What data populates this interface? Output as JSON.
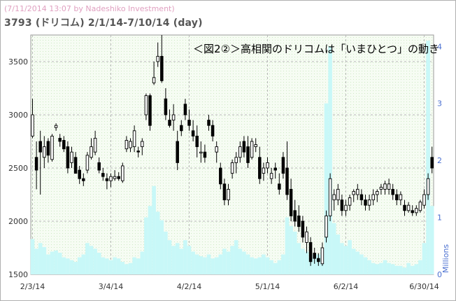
{
  "header": {
    "credit": "(7/11/2014 13:07 by Nadeshiko Investment)",
    "symbol_line": "3793 (ドリコム) 2/1/14-7/10/14 (day)"
  },
  "chart_data": {
    "type": "candlestick",
    "annotation": "＜図2②＞高相関のドリコムは「いまひとつ」の動き",
    "price_axis": {
      "ylim": [
        1500,
        3750
      ],
      "ticks": [
        1500,
        2000,
        2500,
        3000,
        3500
      ],
      "side": "left"
    },
    "volume_axis": {
      "ylim": [
        0,
        4.2
      ],
      "ticks": [
        0,
        1,
        2,
        3,
        4
      ],
      "label": "Millions",
      "side": "right"
    },
    "x_ticks": [
      "2/3/14",
      "3/4/14",
      "4/2/14",
      "5/1/14",
      "6/2/14",
      "6/30/14"
    ],
    "x_tick_index": [
      0,
      20,
      40,
      60,
      80,
      100
    ],
    "grid": true,
    "colors": {
      "up": "#ffffff",
      "down": "#000000",
      "volume": "#c8f8f8",
      "plot_bg": "#f4fbf1",
      "grid": "#b8b8b8"
    },
    "series": [
      {
        "name": "price",
        "ohlc": [
          [
            2800,
            3150,
            2780,
            3000
          ],
          [
            2600,
            2750,
            2300,
            2480
          ],
          [
            2750,
            2850,
            2250,
            2650
          ],
          [
            2600,
            2800,
            2500,
            2700
          ],
          [
            2750,
            2780,
            2550,
            2620
          ],
          [
            2580,
            2820,
            2560,
            2800
          ],
          [
            2880,
            2920,
            2850,
            2900
          ],
          [
            2780,
            2820,
            2700,
            2750
          ],
          [
            2760,
            2800,
            2650,
            2680
          ],
          [
            2700,
            2750,
            2450,
            2500
          ],
          [
            2550,
            2700,
            2500,
            2650
          ],
          [
            2600,
            2650,
            2450,
            2450
          ],
          [
            2480,
            2520,
            2350,
            2400
          ],
          [
            2400,
            2450,
            2330,
            2380
          ],
          [
            2480,
            2650,
            2450,
            2620
          ],
          [
            2600,
            2780,
            2580,
            2700
          ],
          [
            2650,
            2850,
            2620,
            2780
          ],
          [
            2550,
            2600,
            2450,
            2480
          ],
          [
            2450,
            2500,
            2380,
            2420
          ],
          [
            2400,
            2450,
            2300,
            2380
          ],
          [
            2380,
            2450,
            2320,
            2420
          ],
          [
            2400,
            2480,
            2380,
            2420
          ],
          [
            2420,
            2460,
            2380,
            2400
          ],
          [
            2380,
            2550,
            2360,
            2520
          ],
          [
            2680,
            2800,
            2650,
            2760
          ],
          [
            2690,
            2780,
            2650,
            2750
          ],
          [
            2700,
            2900,
            2650,
            2850
          ],
          [
            2660,
            2700,
            2600,
            2650
          ],
          [
            2700,
            2780,
            2620,
            2750
          ],
          [
            3000,
            3200,
            2950,
            3180
          ],
          [
            3180,
            3200,
            2850,
            2900
          ],
          [
            3300,
            3500,
            3280,
            3350
          ],
          [
            3500,
            3680,
            3450,
            3550
          ],
          [
            3550,
            3750,
            3300,
            3320
          ],
          [
            3150,
            3250,
            2950,
            3000
          ],
          [
            2950,
            3050,
            2880,
            2900
          ],
          [
            2950,
            3100,
            2850,
            3000
          ],
          [
            2750,
            2850,
            2480,
            2550
          ],
          [
            2900,
            2950,
            2800,
            2850
          ],
          [
            3100,
            3150,
            2950,
            3000
          ],
          [
            2950,
            3050,
            2850,
            2900
          ],
          [
            2850,
            2950,
            2750,
            2800
          ],
          [
            2800,
            2900,
            2600,
            2700
          ],
          [
            2650,
            2750,
            2550,
            2650
          ],
          [
            2650,
            2720,
            2550,
            2600
          ],
          [
            2950,
            3000,
            2850,
            2900
          ],
          [
            2900,
            2950,
            2750,
            2800
          ],
          [
            2650,
            2750,
            2550,
            2700
          ],
          [
            2500,
            2550,
            2300,
            2350
          ],
          [
            2350,
            2400,
            2150,
            2200
          ],
          [
            2200,
            2350,
            2150,
            2300
          ],
          [
            2450,
            2580,
            2400,
            2550
          ],
          [
            2550,
            2650,
            2450,
            2600
          ],
          [
            2600,
            2750,
            2550,
            2700
          ],
          [
            2750,
            2800,
            2600,
            2650
          ],
          [
            2700,
            2800,
            2500,
            2550
          ],
          [
            2600,
            2780,
            2580,
            2750
          ],
          [
            2700,
            2780,
            2650,
            2720
          ],
          [
            2600,
            2700,
            2350,
            2400
          ],
          [
            2450,
            2550,
            2380,
            2500
          ],
          [
            2500,
            2600,
            2450,
            2550
          ],
          [
            2400,
            2500,
            2350,
            2450
          ],
          [
            2500,
            2550,
            2400,
            2480
          ],
          [
            2350,
            2450,
            2250,
            2300
          ],
          [
            2600,
            2650,
            2400,
            2450
          ],
          [
            2500,
            2750,
            2200,
            2250
          ],
          [
            2300,
            2400,
            2000,
            2050
          ],
          [
            2100,
            2200,
            1950,
            2000
          ],
          [
            2050,
            2150,
            1900,
            1950
          ],
          [
            2000,
            2050,
            1800,
            1850
          ],
          [
            1800,
            1950,
            1700,
            1900
          ],
          [
            1800,
            1850,
            1580,
            1620
          ],
          [
            1700,
            1750,
            1600,
            1650
          ],
          [
            1650,
            1700,
            1580,
            1620
          ],
          [
            1600,
            1800,
            1580,
            1750
          ],
          [
            1850,
            2100,
            1800,
            2050
          ],
          [
            2050,
            2450,
            2000,
            2400
          ],
          [
            2200,
            2300,
            2100,
            2250
          ],
          [
            2200,
            2350,
            2150,
            2300
          ],
          [
            2200,
            2250,
            2050,
            2100
          ],
          [
            2100,
            2200,
            2050,
            2150
          ],
          [
            2150,
            2250,
            2100,
            2220
          ],
          [
            2250,
            2300,
            2180,
            2280
          ],
          [
            2250,
            2350,
            2200,
            2300
          ],
          [
            2250,
            2300,
            2150,
            2200
          ],
          [
            2200,
            2250,
            2100,
            2150
          ],
          [
            2150,
            2250,
            2100,
            2200
          ],
          [
            2200,
            2300,
            2150,
            2250
          ],
          [
            2250,
            2300,
            2180,
            2280
          ],
          [
            2300,
            2350,
            2250,
            2320
          ],
          [
            2300,
            2380,
            2250,
            2350
          ],
          [
            2300,
            2400,
            2250,
            2350
          ],
          [
            2300,
            2350,
            2200,
            2250
          ],
          [
            2250,
            2300,
            2150,
            2200
          ],
          [
            2200,
            2280,
            2150,
            2250
          ],
          [
            2150,
            2200,
            2050,
            2100
          ],
          [
            2100,
            2180,
            2080,
            2150
          ],
          [
            2100,
            2150,
            2050,
            2080
          ],
          [
            2080,
            2150,
            2050,
            2120
          ],
          [
            2100,
            2200,
            2080,
            2180
          ],
          [
            2150,
            2300,
            2120,
            2250
          ],
          [
            2250,
            2450,
            2200,
            2400
          ],
          [
            2600,
            2700,
            2450,
            2500
          ]
        ]
      },
      {
        "name": "volume",
        "values": [
          0.62,
          0.45,
          0.55,
          0.48,
          0.35,
          0.4,
          0.42,
          0.38,
          0.3,
          0.28,
          0.25,
          0.22,
          0.3,
          0.35,
          0.55,
          0.5,
          0.45,
          0.38,
          0.3,
          0.28,
          0.25,
          0.3,
          0.28,
          0.22,
          0.18,
          0.2,
          0.3,
          0.28,
          0.4,
          1.0,
          1.2,
          1.55,
          1.1,
          0.95,
          0.75,
          0.6,
          0.5,
          0.55,
          0.45,
          0.6,
          0.5,
          0.4,
          0.35,
          0.32,
          0.3,
          0.35,
          0.28,
          0.3,
          0.35,
          0.45,
          0.4,
          0.5,
          0.6,
          0.45,
          0.4,
          0.35,
          0.3,
          0.28,
          0.3,
          0.35,
          0.3,
          0.25,
          0.2,
          0.25,
          0.35,
          1.0,
          0.85,
          0.75,
          0.55,
          0.45,
          0.4,
          0.3,
          0.35,
          0.35,
          0.45,
          3.0,
          4.0,
          0.9,
          0.7,
          0.55,
          0.5,
          0.6,
          0.45,
          0.4,
          0.35,
          0.3,
          0.25,
          0.2,
          0.18,
          0.2,
          0.25,
          0.2,
          0.18,
          0.15,
          0.15,
          0.12,
          0.2,
          0.15,
          0.18,
          0.25,
          0.55,
          4.1,
          1.2
        ]
      }
    ]
  }
}
